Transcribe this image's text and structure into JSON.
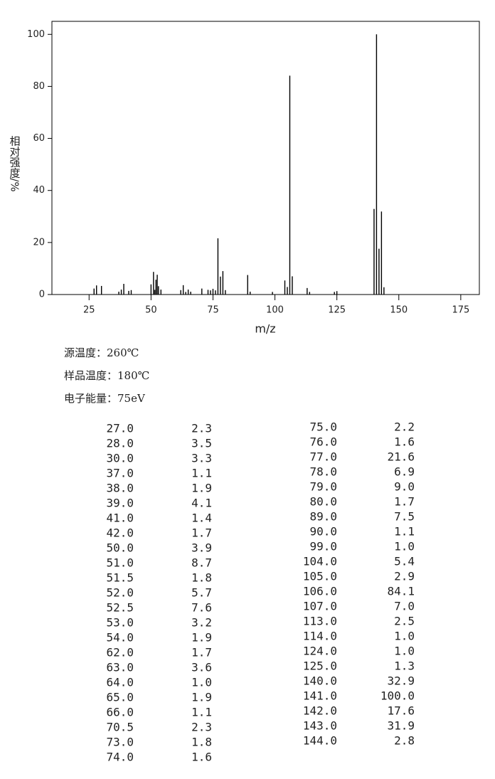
{
  "chart_data": {
    "type": "bar",
    "x_label": "m/z",
    "y_label": "相对强度/%",
    "xlim": [
      10,
      182.5
    ],
    "xticks": [
      25,
      50,
      75,
      100,
      125,
      150,
      175
    ],
    "ylim": [
      0,
      105
    ],
    "yticks": [
      0,
      20,
      40,
      60,
      80,
      100
    ],
    "color": "#000000",
    "x": [
      27,
      28,
      30,
      37,
      38,
      39,
      41,
      42,
      50,
      51,
      51.5,
      52,
      52.5,
      53,
      54,
      62,
      63,
      64,
      65,
      66,
      70.5,
      73,
      74,
      75,
      76,
      77,
      78,
      79,
      80,
      89,
      90,
      99,
      104,
      105,
      106,
      107,
      113,
      114,
      124,
      125,
      140,
      141,
      142,
      143,
      144
    ],
    "x_labels": [
      "27.0",
      "28.0",
      "30.0",
      "37.0",
      "38.0",
      "39.0",
      "41.0",
      "42.0",
      "50.0",
      "51.0",
      "51.5",
      "52.0",
      "52.5",
      "53.0",
      "54.0",
      "62.0",
      "63.0",
      "64.0",
      "65.0",
      "66.0",
      "70.5",
      "73.0",
      "74.0",
      "75.0",
      "76.0",
      "77.0",
      "78.0",
      "79.0",
      "80.0",
      "89.0",
      "90.0",
      "99.0",
      "104.0",
      "105.0",
      "106.0",
      "107.0",
      "113.0",
      "114.0",
      "124.0",
      "125.0",
      "140.0",
      "141.0",
      "142.0",
      "143.0",
      "144.0"
    ],
    "values": [
      2.3,
      3.5,
      3.3,
      1.1,
      1.9,
      4.1,
      1.4,
      1.7,
      3.9,
      8.7,
      1.8,
      5.7,
      7.6,
      3.2,
      1.9,
      1.7,
      3.6,
      1.0,
      1.9,
      1.1,
      2.3,
      1.8,
      1.6,
      2.2,
      1.6,
      21.6,
      6.9,
      9.0,
      1.7,
      7.5,
      1.1,
      1.0,
      5.4,
      2.9,
      84.1,
      7.0,
      2.5,
      1.0,
      1.0,
      1.3,
      32.9,
      100.0,
      17.6,
      31.9,
      2.8
    ],
    "value_labels": [
      "2.3",
      "3.5",
      "3.3",
      "1.1",
      "1.9",
      "4.1",
      "1.4",
      "1.7",
      "3.9",
      "8.7",
      "1.8",
      "5.7",
      "7.6",
      "3.2",
      "1.9",
      "1.7",
      "3.6",
      "1.0",
      "1.9",
      "1.1",
      "2.3",
      "1.8",
      "1.6",
      "2.2",
      "1.6",
      "21.6",
      "6.9",
      "9.0",
      "1.7",
      "7.5",
      "1.1",
      "1.0",
      "5.4",
      "2.9",
      "84.1",
      "7.0",
      "2.5",
      "1.0",
      "1.0",
      "1.3",
      "32.9",
      "100.0",
      "17.6",
      "31.9",
      "2.8"
    ]
  },
  "conditions": [
    "源温度：260℃",
    "样品温度：180℃",
    "电子能量：75eV"
  ]
}
